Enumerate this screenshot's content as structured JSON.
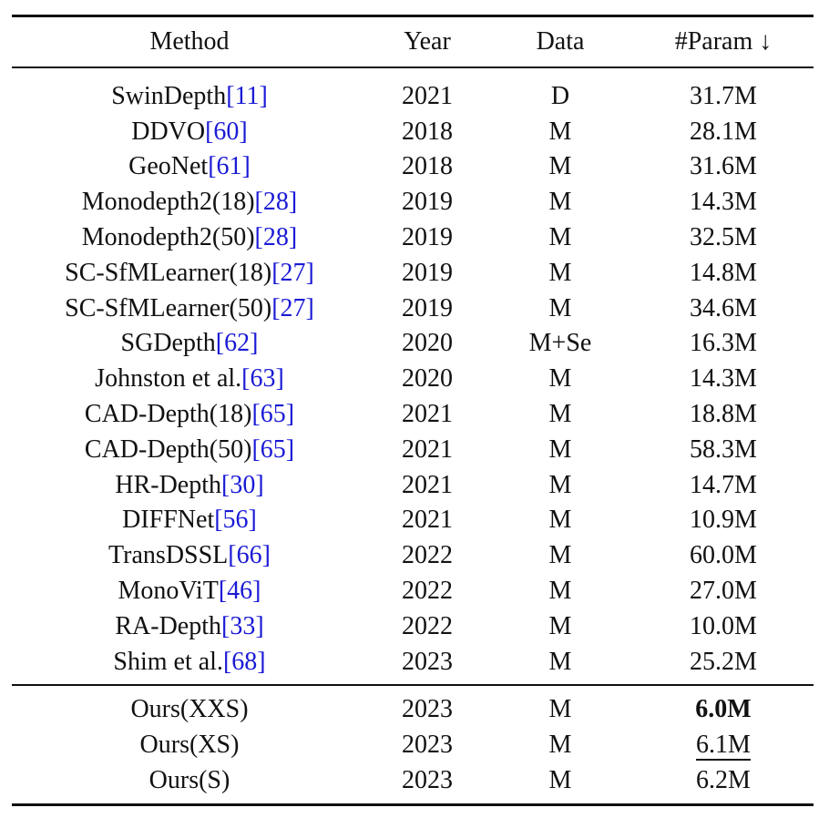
{
  "table": {
    "headers": {
      "method": "Method",
      "year": "Year",
      "data": "Data",
      "param": "#Param ↓"
    },
    "rows": [
      {
        "method": "SwinDepth",
        "cite": "[11]",
        "year": "2021",
        "data": "D",
        "param": "31.7M"
      },
      {
        "method": "DDVO",
        "cite": "[60]",
        "year": "2018",
        "data": "M",
        "param": "28.1M"
      },
      {
        "method": "GeoNet",
        "cite": "[61]",
        "year": "2018",
        "data": "M",
        "param": "31.6M"
      },
      {
        "method": "Monodepth2(18)",
        "cite": "[28]",
        "year": "2019",
        "data": "M",
        "param": "14.3M"
      },
      {
        "method": "Monodepth2(50)",
        "cite": "[28]",
        "year": "2019",
        "data": "M",
        "param": "32.5M"
      },
      {
        "method": "SC-SfMLearner(18)",
        "cite": "[27]",
        "year": "2019",
        "data": "M",
        "param": "14.8M"
      },
      {
        "method": "SC-SfMLearner(50)",
        "cite": "[27]",
        "year": "2019",
        "data": "M",
        "param": "34.6M"
      },
      {
        "method": "SGDepth",
        "cite": "[62]",
        "year": "2020",
        "data": "M+Se",
        "param": "16.3M"
      },
      {
        "method": "Johnston et al.",
        "cite": "[63]",
        "year": "2020",
        "data": "M",
        "param": "14.3M"
      },
      {
        "method": "CAD-Depth(18)",
        "cite": "[65]",
        "year": "2021",
        "data": "M",
        "param": "18.8M"
      },
      {
        "method": "CAD-Depth(50)",
        "cite": "[65]",
        "year": "2021",
        "data": "M",
        "param": "58.3M"
      },
      {
        "method": "HR-Depth",
        "cite": "[30]",
        "year": "2021",
        "data": "M",
        "param": "14.7M"
      },
      {
        "method": "DIFFNet",
        "cite": "[56]",
        "year": "2021",
        "data": "M",
        "param": "10.9M"
      },
      {
        "method": "TransDSSL",
        "cite": "[66]",
        "year": "2022",
        "data": "M",
        "param": "60.0M"
      },
      {
        "method": "MonoViT",
        "cite": "[46]",
        "year": "2022",
        "data": "M",
        "param": "27.0M"
      },
      {
        "method": "RA-Depth",
        "cite": "[33]",
        "year": "2022",
        "data": "M",
        "param": "10.0M"
      },
      {
        "method": "Shim et al.",
        "cite": "[68]",
        "year": "2023",
        "data": "M",
        "param": "25.2M"
      }
    ],
    "ours": [
      {
        "method": "Ours(XXS)",
        "year": "2023",
        "data": "M",
        "param": "6.0M",
        "emphasis": "bold"
      },
      {
        "method": "Ours(XS)",
        "year": "2023",
        "data": "M",
        "param": "6.1M",
        "emphasis": "underline"
      },
      {
        "method": "Ours(S)",
        "year": "2023",
        "data": "M",
        "param": "6.2M",
        "emphasis": "none"
      }
    ]
  },
  "colors": {
    "text": "#111111",
    "citation": "#1a1ad6",
    "rule": "#111111"
  }
}
